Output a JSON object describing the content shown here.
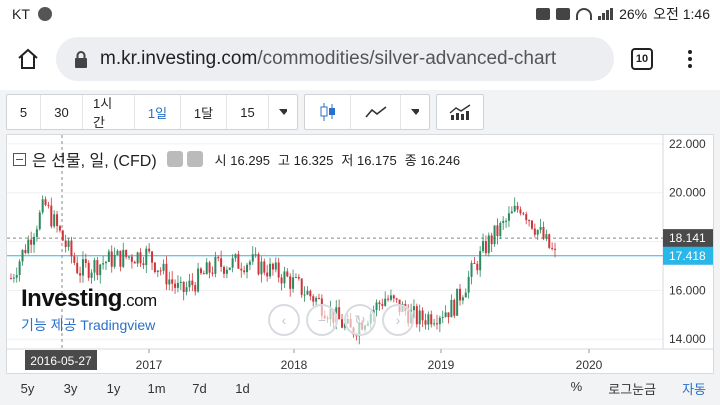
{
  "status": {
    "carrier": "KT",
    "battery": "26%",
    "time": "오전 1:46"
  },
  "browser": {
    "url_host": "m.kr.investing.com",
    "url_path": "/commodities/silver-advanced-chart",
    "tabs_count": "10"
  },
  "toolbar": {
    "intervals": [
      "5",
      "30",
      "1시간",
      "1일",
      "1달",
      "15"
    ],
    "active_interval": "1일"
  },
  "chart_header": {
    "title": "은 선물, 일, (CFD)",
    "open_label": "시",
    "open": "16.295",
    "high_label": "고",
    "high": "16.325",
    "low_label": "저",
    "low": "16.175",
    "close_label": "종",
    "close": "16.246"
  },
  "logo": {
    "brand": "Investing",
    "brand_suffix": ".com",
    "sub": "기능 제공 Tradingview"
  },
  "bottom": {
    "ranges": [
      "5y",
      "3y",
      "1y",
      "1m",
      "7d",
      "1d"
    ],
    "percent": "%",
    "log": "로그눈금",
    "auto": "자동"
  },
  "colors": {
    "accent": "#2a6fc9",
    "up": "#2b8a5f",
    "down": "#d0343a",
    "last_price": "#29b6e8"
  },
  "chart_data": {
    "type": "line",
    "x": [
      "2016-05-27",
      "2016-08",
      "2016-11",
      "2017-01",
      "2017-04",
      "2017-07",
      "2017-10",
      "2018-01",
      "2018-04",
      "2018-07",
      "2018-10",
      "2019-01",
      "2019-04",
      "2019-06",
      "2019-08",
      "2019-09",
      "2019-10"
    ],
    "values": [
      16.5,
      19.5,
      16.8,
      17.3,
      17.5,
      15.9,
      17.0,
      17.2,
      16.6,
      15.6,
      14.3,
      15.7,
      14.8,
      15.3,
      17.9,
      19.5,
      17.4
    ],
    "yticks": [
      "22.000",
      "20.000",
      "18.000",
      "16.000",
      "14.000"
    ],
    "ylim": [
      13.6,
      22.2
    ],
    "xticks": [
      "2017",
      "2018",
      "2019",
      "2020"
    ],
    "crosshair_date": "2016-05-27",
    "price_labels": [
      "18.141",
      "17.418"
    ]
  }
}
